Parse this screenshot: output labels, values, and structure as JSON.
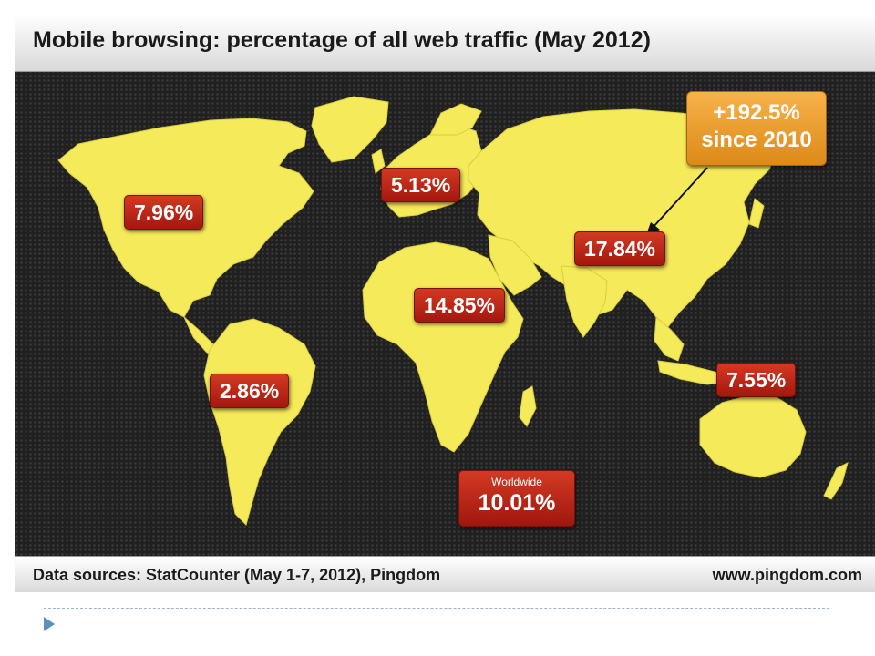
{
  "title": "Mobile browsing: percentage of all web traffic (May 2012)",
  "regions": [
    {
      "id": "north-america",
      "value": "7.96%"
    },
    {
      "id": "europe",
      "value": "5.13%"
    },
    {
      "id": "asia",
      "value": "17.84%"
    },
    {
      "id": "africa",
      "value": "14.85%"
    },
    {
      "id": "south-america",
      "value": "2.86%"
    },
    {
      "id": "oceania",
      "value": "7.55%"
    }
  ],
  "worldwide": {
    "caption": "Worldwide",
    "value": "10.01%"
  },
  "callout": {
    "line1": "+192.5%",
    "line2": "since 2010"
  },
  "footer": {
    "sources": "Data sources: StatCounter (May 1-7, 2012), Pingdom",
    "url": "www.pingdom.com"
  },
  "colors": {
    "land": "#f5ea5a",
    "ocean": "#202020",
    "label": "#b5231a",
    "callout": "#eea035"
  },
  "icons": {
    "bullet": "triangle-right-icon"
  }
}
